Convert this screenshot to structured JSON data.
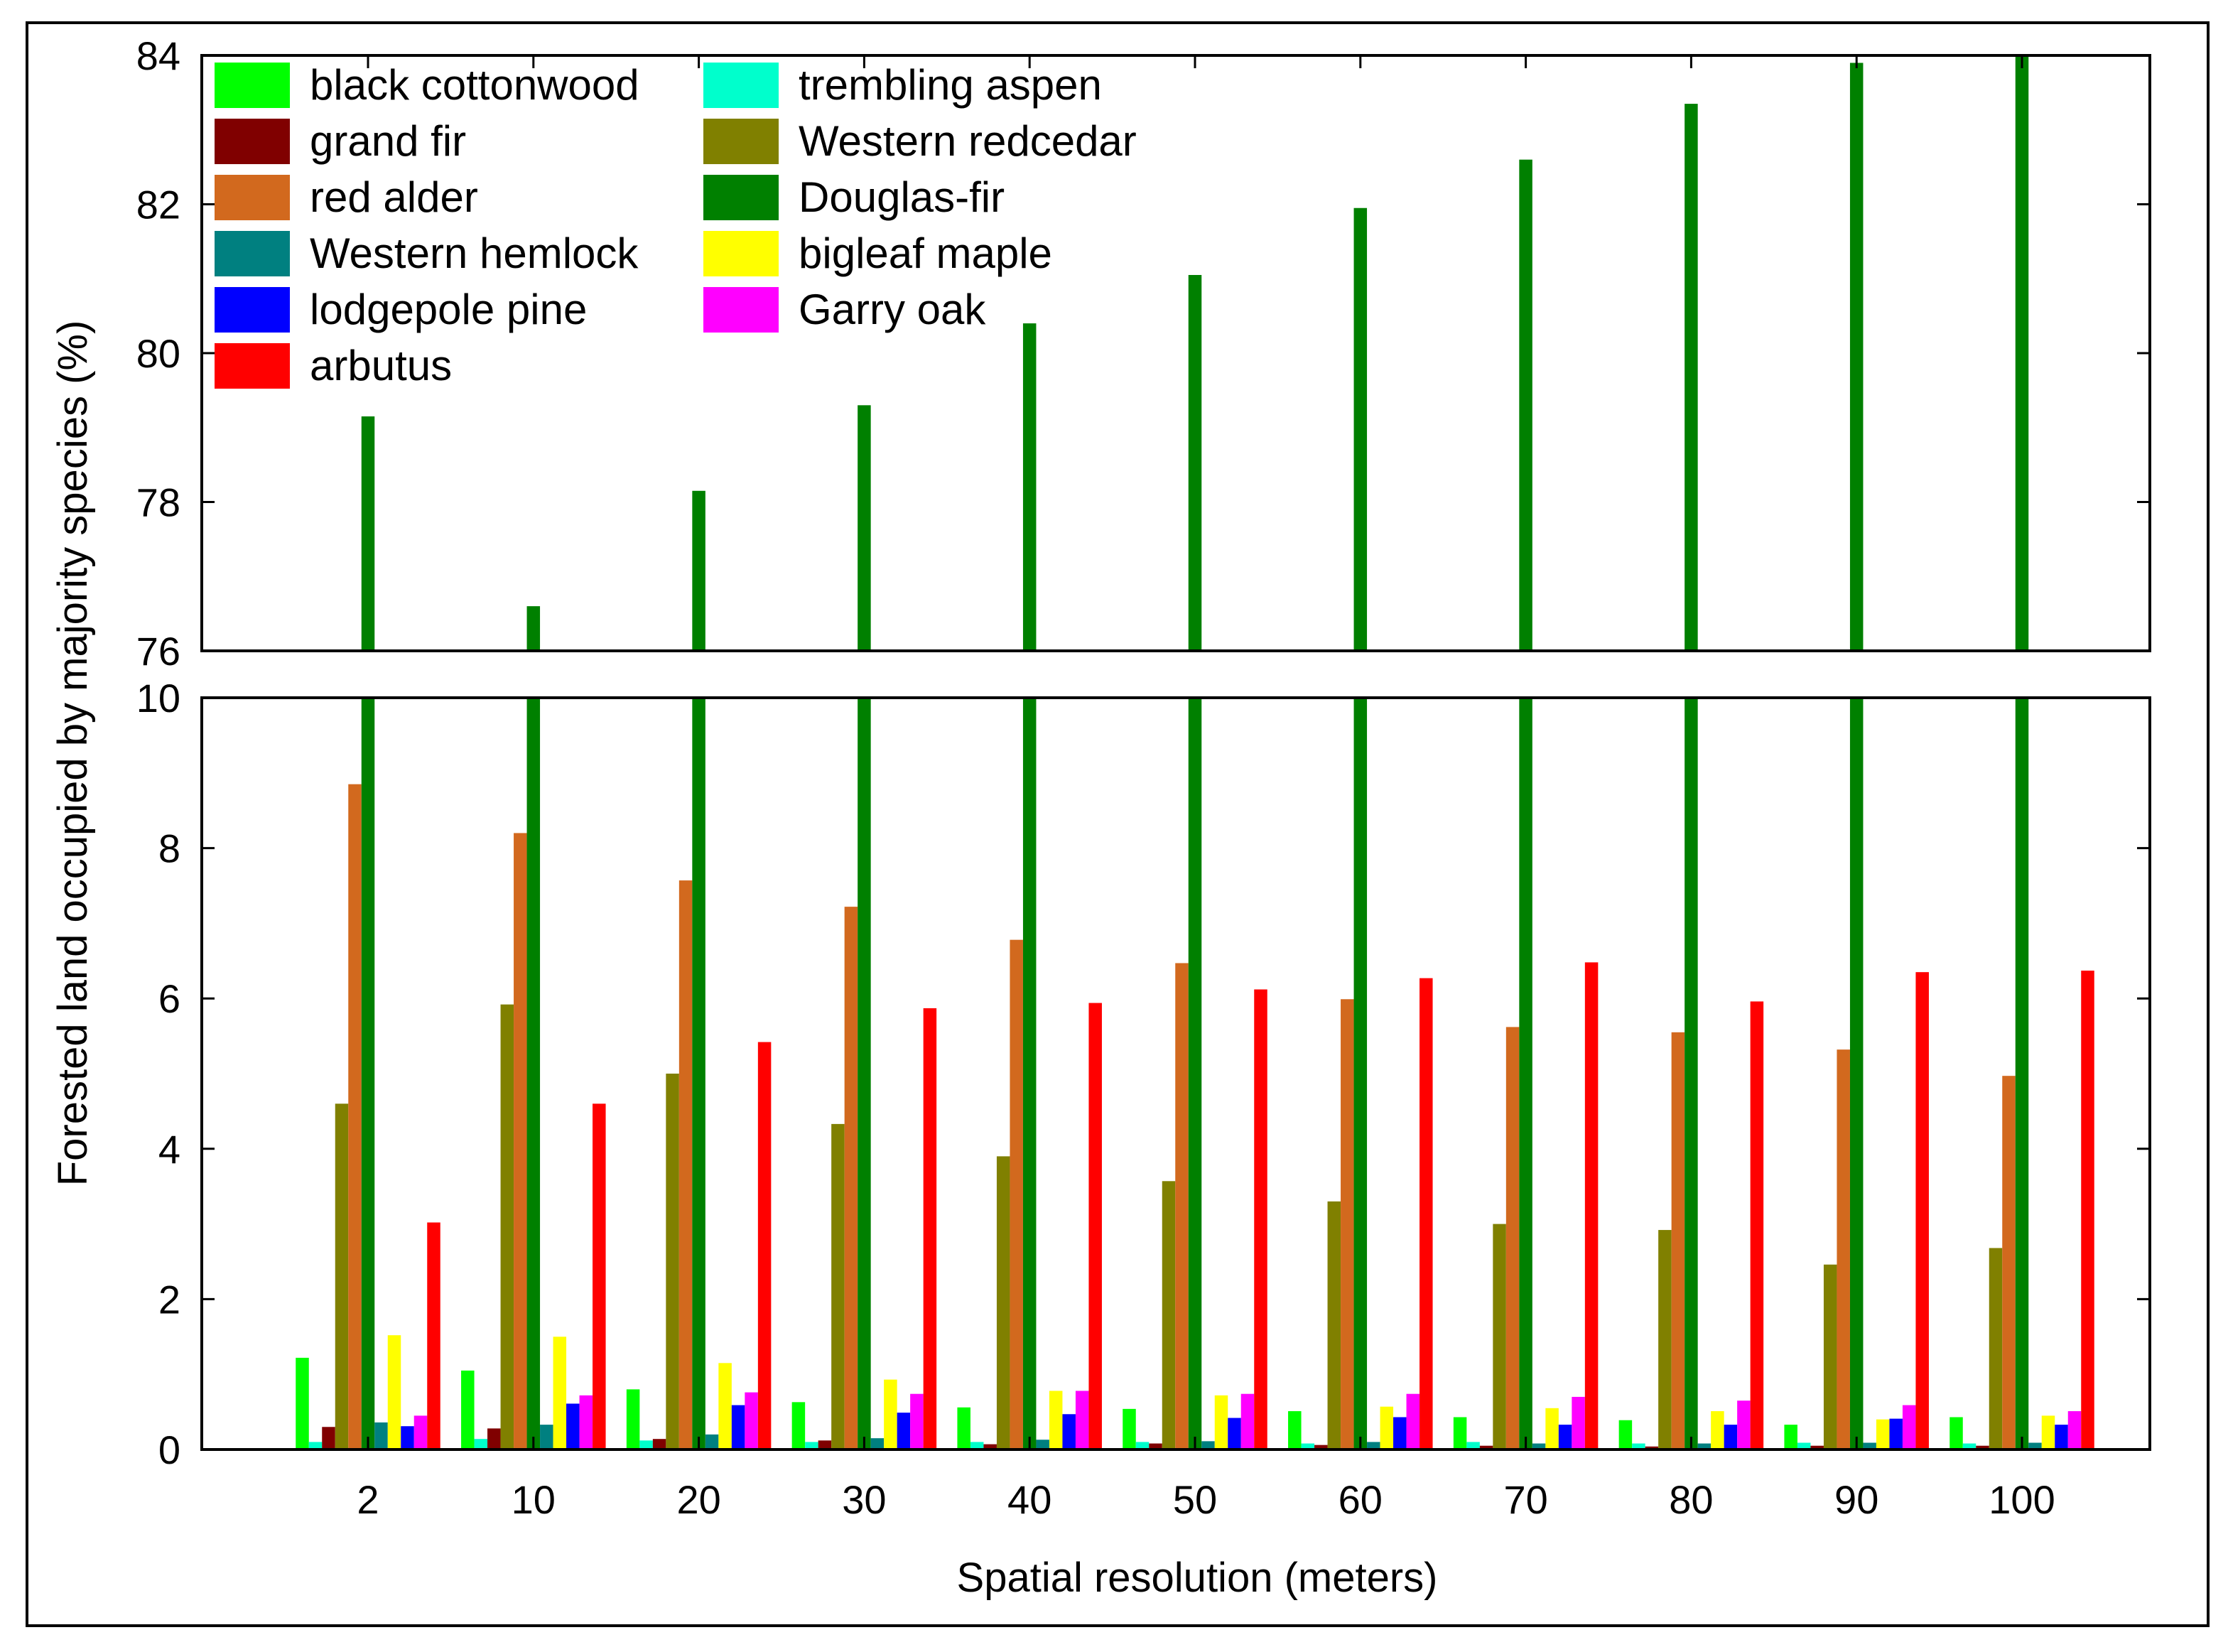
{
  "chart_data": {
    "type": "bar",
    "title": "",
    "xlabel": "Spatial resolution (meters)",
    "ylabel": "Forested land occupied by majority species (%)",
    "categories": [
      "2",
      "10",
      "20",
      "30",
      "40",
      "50",
      "60",
      "70",
      "80",
      "90",
      "100"
    ],
    "y_break": {
      "lower_range": [
        0,
        10
      ],
      "upper_range": [
        76,
        84
      ],
      "lower_ticks": [
        "0",
        "2",
        "4",
        "6",
        "8",
        "10"
      ],
      "upper_ticks": [
        "76",
        "78",
        "80",
        "82",
        "84"
      ]
    },
    "legend_position": "top-left",
    "grid": false,
    "series": [
      {
        "name": "black cottonwood",
        "color": "#00ff00",
        "values": [
          1.22,
          1.05,
          0.8,
          0.63,
          0.56,
          0.54,
          0.51,
          0.43,
          0.39,
          0.33,
          0.43
        ]
      },
      {
        "name": "trembling aspen",
        "color": "#00ffcc",
        "values": [
          0.1,
          0.14,
          0.12,
          0.1,
          0.1,
          0.1,
          0.08,
          0.1,
          0.08,
          0.09,
          0.08
        ]
      },
      {
        "name": "grand fir",
        "color": "#800000",
        "values": [
          0.3,
          0.28,
          0.14,
          0.12,
          0.07,
          0.08,
          0.06,
          0.05,
          0.04,
          0.05,
          0.05
        ]
      },
      {
        "name": "Western redcedar",
        "color": "#808000",
        "values": [
          4.6,
          5.92,
          5.0,
          4.33,
          3.9,
          3.57,
          3.3,
          3.0,
          2.92,
          2.46,
          2.68
        ]
      },
      {
        "name": "red alder",
        "color": "#d2691e",
        "values": [
          8.85,
          8.2,
          7.57,
          7.22,
          6.78,
          6.47,
          5.99,
          5.62,
          5.55,
          5.32,
          4.97
        ]
      },
      {
        "name": "Douglas-fir",
        "color": "#008000",
        "values": [
          79.15,
          76.6,
          78.15,
          79.3,
          80.4,
          81.05,
          81.95,
          82.6,
          83.35,
          83.9,
          84.0
        ]
      },
      {
        "name": "Western hemlock",
        "color": "#008080",
        "values": [
          0.36,
          0.33,
          0.2,
          0.15,
          0.13,
          0.11,
          0.1,
          0.08,
          0.08,
          0.09,
          0.09
        ]
      },
      {
        "name": "bigleaf maple",
        "color": "#ffff00",
        "values": [
          1.52,
          1.5,
          1.15,
          0.93,
          0.78,
          0.72,
          0.57,
          0.55,
          0.51,
          0.4,
          0.45
        ]
      },
      {
        "name": "lodgepole pine",
        "color": "#0000ff",
        "values": [
          0.31,
          0.61,
          0.59,
          0.49,
          0.47,
          0.42,
          0.43,
          0.33,
          0.33,
          0.41,
          0.33
        ]
      },
      {
        "name": "Garry oak",
        "color": "#ff00ff",
        "values": [
          0.45,
          0.72,
          0.76,
          0.74,
          0.78,
          0.74,
          0.74,
          0.7,
          0.65,
          0.59,
          0.51
        ]
      },
      {
        "name": "arbutus",
        "color": "#ff0000",
        "values": [
          3.02,
          4.6,
          5.42,
          5.87,
          5.94,
          6.12,
          6.27,
          6.48,
          5.96,
          6.35,
          6.37
        ]
      }
    ]
  }
}
